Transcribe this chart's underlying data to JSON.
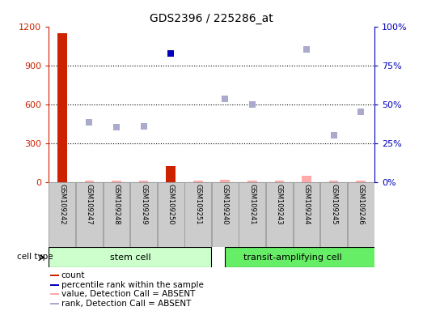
{
  "title": "GDS2396 / 225286_at",
  "samples": [
    "GSM109242",
    "GSM109247",
    "GSM109248",
    "GSM109249",
    "GSM109250",
    "GSM109251",
    "GSM109240",
    "GSM109241",
    "GSM109243",
    "GSM109244",
    "GSM109245",
    "GSM109246"
  ],
  "n_stem": 6,
  "n_transit": 6,
  "count_values": [
    1150,
    5,
    5,
    5,
    120,
    5,
    15,
    5,
    5,
    5,
    5,
    5
  ],
  "value_absent": [
    false,
    true,
    true,
    true,
    false,
    true,
    true,
    true,
    true,
    true,
    true,
    true
  ],
  "value_absent_vals": [
    0,
    8,
    8,
    8,
    0,
    8,
    18,
    8,
    8,
    45,
    8,
    8
  ],
  "rank_vals": [
    0,
    460,
    420,
    430,
    0,
    0,
    640,
    600,
    0,
    1020,
    360,
    540
  ],
  "rank_absent": [
    false,
    true,
    true,
    true,
    false,
    false,
    true,
    true,
    false,
    true,
    true,
    true
  ],
  "percentile_vals": [
    0,
    0,
    0,
    0,
    990,
    0,
    0,
    0,
    0,
    0,
    0,
    0
  ],
  "percentile_present": [
    false,
    false,
    false,
    false,
    true,
    false,
    false,
    false,
    false,
    false,
    false,
    false
  ],
  "ylim_left": [
    0,
    1200
  ],
  "ylim_right": [
    0,
    100
  ],
  "yticks_left": [
    0,
    300,
    600,
    900,
    1200
  ],
  "yticks_right": [
    0,
    25,
    50,
    75,
    100
  ],
  "ytick_labels_right": [
    "0%",
    "25%",
    "50%",
    "75%",
    "100%"
  ],
  "count_color": "#cc2200",
  "absent_value_color": "#ffaaaa",
  "percentile_color": "#0000bb",
  "rank_absent_color": "#aaaacc",
  "stem_color_light": "#ccffcc",
  "transit_color": "#66ee66",
  "bar_gray": "#cccccc",
  "bar_edge": "#999999",
  "grid_color": "#000000",
  "left_axis_color": "#cc2200",
  "right_axis_color": "#0000bb",
  "legend_items": [
    {
      "color": "#cc2200",
      "label": "count"
    },
    {
      "color": "#0000bb",
      "label": "percentile rank within the sample"
    },
    {
      "color": "#ffaaaa",
      "label": "value, Detection Call = ABSENT"
    },
    {
      "color": "#aaaacc",
      "label": "rank, Detection Call = ABSENT"
    }
  ]
}
